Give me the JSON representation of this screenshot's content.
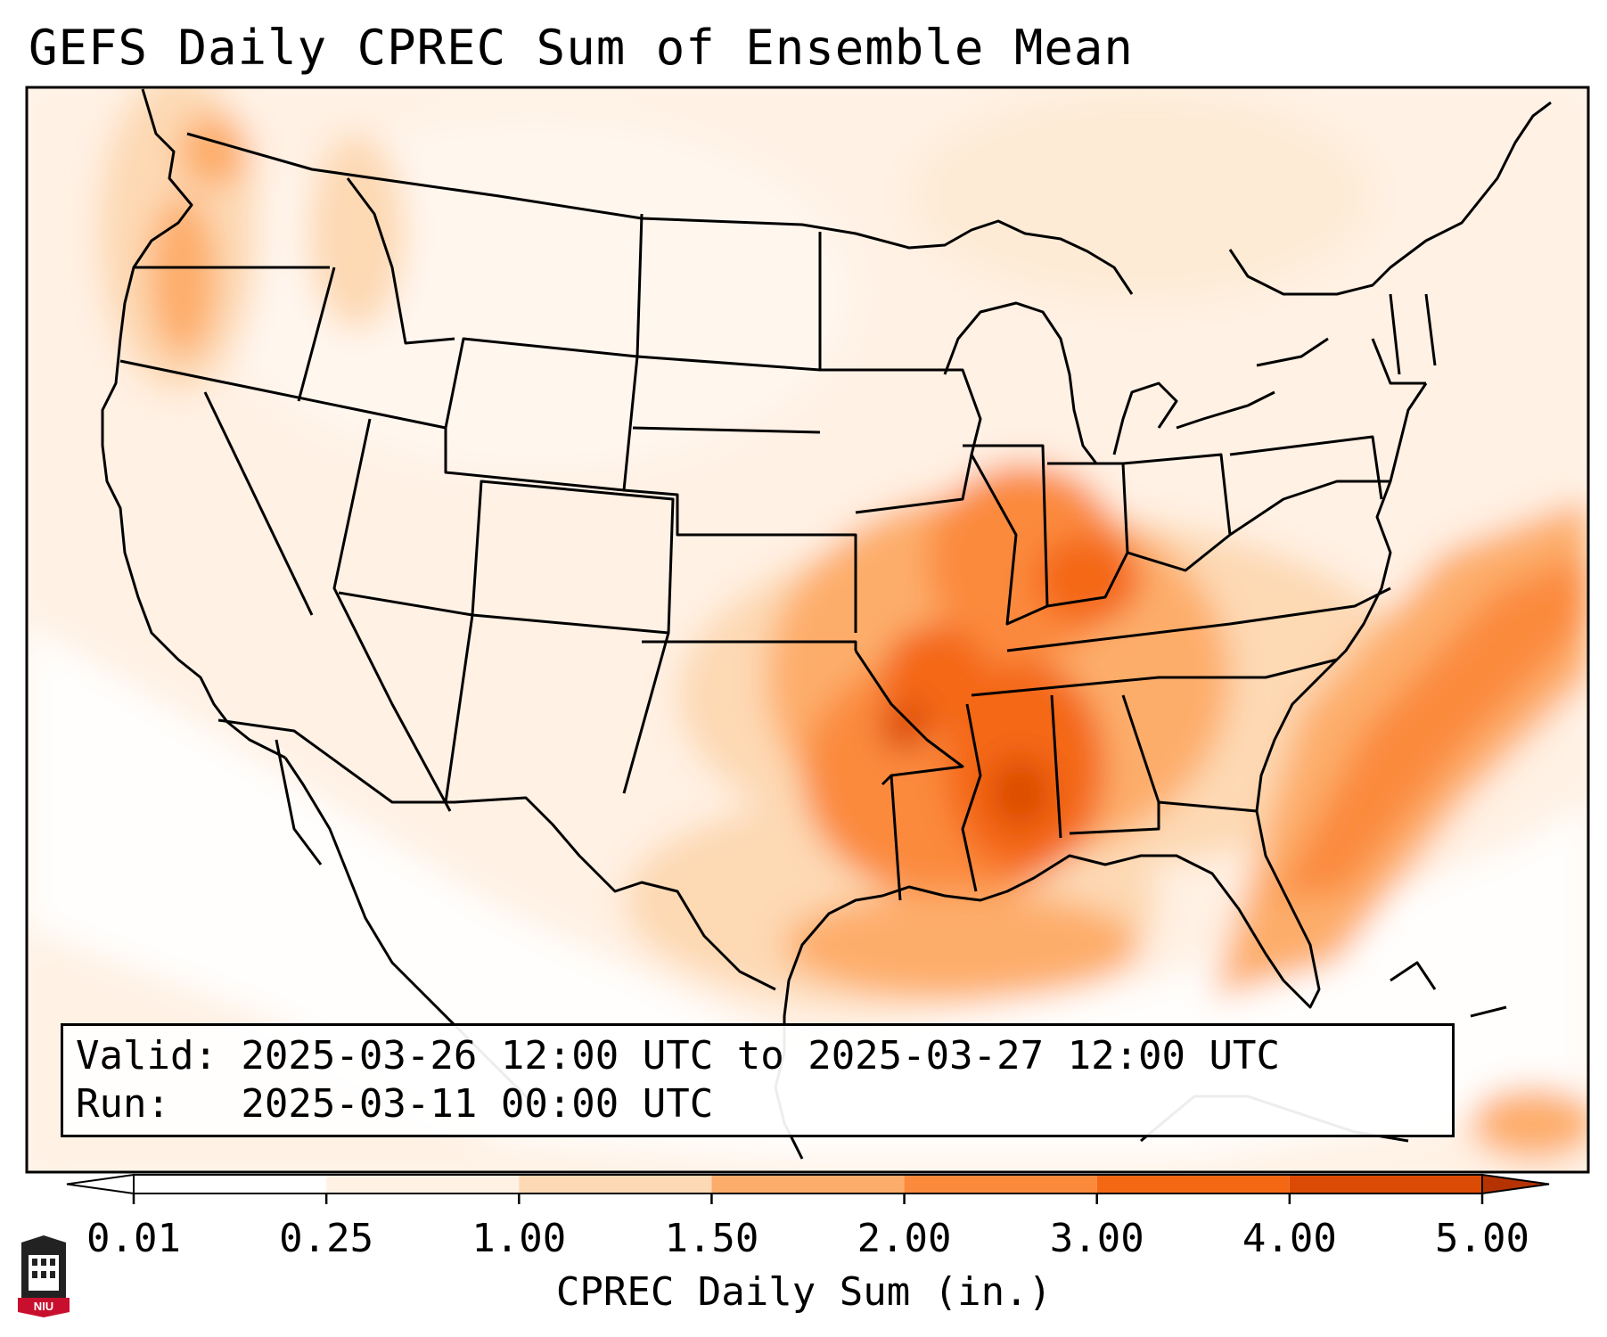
{
  "title": "GEFS Daily CPREC Sum of Ensemble Mean",
  "valid_line": "Valid: 2025-03-26 12:00 UTC to 2025-03-27 12:00 UTC",
  "run_line": "Run:   2025-03-11 00:00 UTC",
  "colorbar": {
    "label": "CPREC Daily Sum (in.)",
    "ticks": [
      "0.01",
      "0.25",
      "1.00",
      "1.50",
      "2.00",
      "3.00",
      "4.00",
      "5.00"
    ],
    "colors": [
      "#ffffff",
      "#fff1e4",
      "#fdd9b4",
      "#fdad6b",
      "#fb8a3d",
      "#f46814",
      "#dc4b05",
      "#b53302"
    ],
    "extend": "both"
  },
  "map": {
    "region": "Continental United States",
    "projection": "Lambert Conformal",
    "max_areas": [
      "Mid-South",
      "Lower Mississippi Valley",
      "Western Atlantic offshore"
    ]
  },
  "logo": {
    "text": "NIU",
    "icon": "university-tower-icon"
  }
}
